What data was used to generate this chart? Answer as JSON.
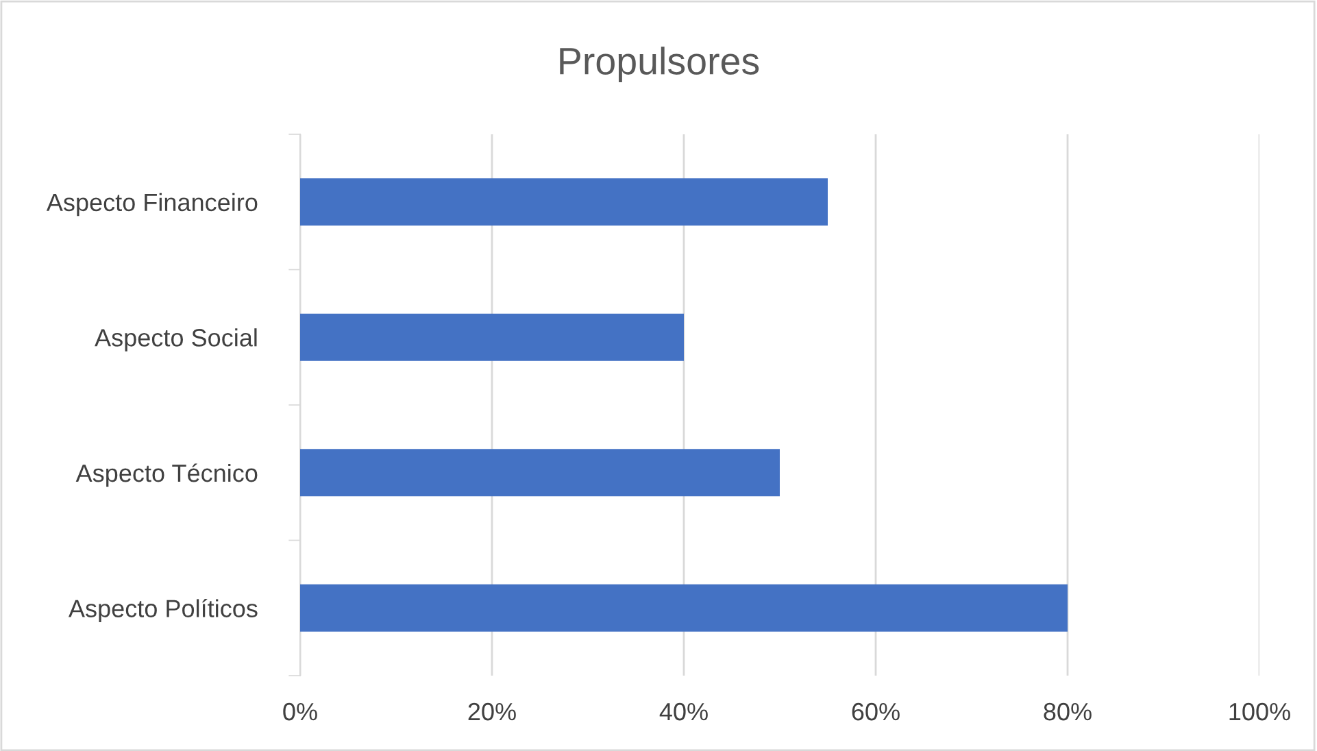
{
  "chart_data": {
    "type": "bar",
    "orientation": "horizontal",
    "title": "Propulsores",
    "categories": [
      "Aspecto Financeiro",
      "Aspecto Social",
      "Aspecto Técnico",
      "Aspecto Políticos"
    ],
    "values": [
      55,
      40,
      50,
      80
    ],
    "color": "#4472c4",
    "xlim": [
      0,
      100
    ],
    "xticks": [
      {
        "value": 0,
        "label": "0%"
      },
      {
        "value": 20,
        "label": "20%"
      },
      {
        "value": 40,
        "label": "40%"
      },
      {
        "value": 60,
        "label": "60%"
      },
      {
        "value": 80,
        "label": "80%"
      },
      {
        "value": 100,
        "label": "100%"
      }
    ],
    "grid": "x"
  }
}
